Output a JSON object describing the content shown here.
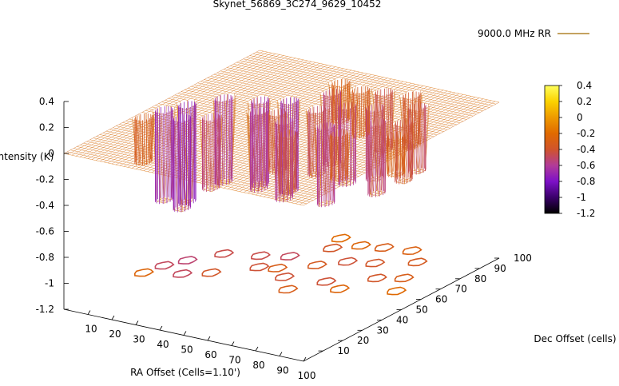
{
  "chart_data": {
    "type": "surface",
    "title": "Skynet_56869_3C274_9629_10452",
    "legend": {
      "label": "9000.0 MHz RR",
      "placement": "top-right",
      "color": "#a06a00"
    },
    "xlabel": "RA Offset (Cells=1.10')",
    "ylabel": "Dec Offset (cells)",
    "zlabel": "Intensity (K)",
    "x_ticks": [
      "10",
      "20",
      "30",
      "40",
      "50",
      "60",
      "70",
      "80",
      "90",
      "100"
    ],
    "y_ticks": [
      "10",
      "20",
      "30",
      "40",
      "50",
      "60",
      "70",
      "80",
      "90",
      "100"
    ],
    "z_ticks": [
      "0.4",
      "0.2",
      "0",
      "-0.2",
      "-0.4",
      "-0.6",
      "-0.8",
      "-1",
      "-1.2"
    ],
    "xlim": [
      0,
      100
    ],
    "ylim": [
      0,
      100
    ],
    "zlim": [
      -1.2,
      0.4
    ],
    "surface_level": 0,
    "colorbar": {
      "ticks": [
        "0.4",
        "0.2",
        "0",
        "-0.2",
        "-0.4",
        "-0.6",
        "-0.8",
        "-1",
        "-1.2"
      ],
      "range": [
        -1.2,
        0.4
      ],
      "palette": [
        "#000000",
        "#3a006a",
        "#7d10c8",
        "#b23c98",
        "#d0542c",
        "#e06a00",
        "#ee9a00",
        "#fbd200",
        "#ffff5c"
      ]
    },
    "depressions": [
      {
        "x": 3,
        "y": 37,
        "depth": -0.35
      },
      {
        "x": 5,
        "y": 45,
        "depth": -0.7
      },
      {
        "x": 9,
        "y": 52,
        "depth": -0.75
      },
      {
        "x": 15,
        "y": 42,
        "depth": -0.7
      },
      {
        "x": 16,
        "y": 62,
        "depth": -0.65
      },
      {
        "x": 23,
        "y": 47,
        "depth": -0.55
      },
      {
        "x": 28,
        "y": 66,
        "depth": -0.65
      },
      {
        "x": 34,
        "y": 58,
        "depth": -0.6
      },
      {
        "x": 37,
        "y": 70,
        "depth": -0.7
      },
      {
        "x": 40,
        "y": 60,
        "depth": -0.45
      },
      {
        "x": 45,
        "y": 82,
        "depth": -0.55
      },
      {
        "x": 47,
        "y": 55,
        "depth": -0.6
      },
      {
        "x": 50,
        "y": 68,
        "depth": -0.5
      },
      {
        "x": 55,
        "y": 47,
        "depth": -0.45
      },
      {
        "x": 57,
        "y": 75,
        "depth": -0.6
      },
      {
        "x": 62,
        "y": 58,
        "depth": -0.6
      },
      {
        "x": 66,
        "y": 78,
        "depth": -0.55
      },
      {
        "x": 70,
        "y": 55,
        "depth": -0.35
      },
      {
        "x": 75,
        "y": 68,
        "depth": -0.55
      },
      {
        "x": 78,
        "y": 85,
        "depth": -0.5
      },
      {
        "x": 83,
        "y": 72,
        "depth": -0.45
      },
      {
        "x": 88,
        "y": 62,
        "depth": -0.3
      },
      {
        "x": 60,
        "y": 90,
        "depth": -0.45
      },
      {
        "x": 70,
        "y": 92,
        "depth": -0.4
      },
      {
        "x": 52,
        "y": 88,
        "depth": -0.35
      },
      {
        "x": 42,
        "y": 90,
        "depth": -0.3
      }
    ]
  }
}
